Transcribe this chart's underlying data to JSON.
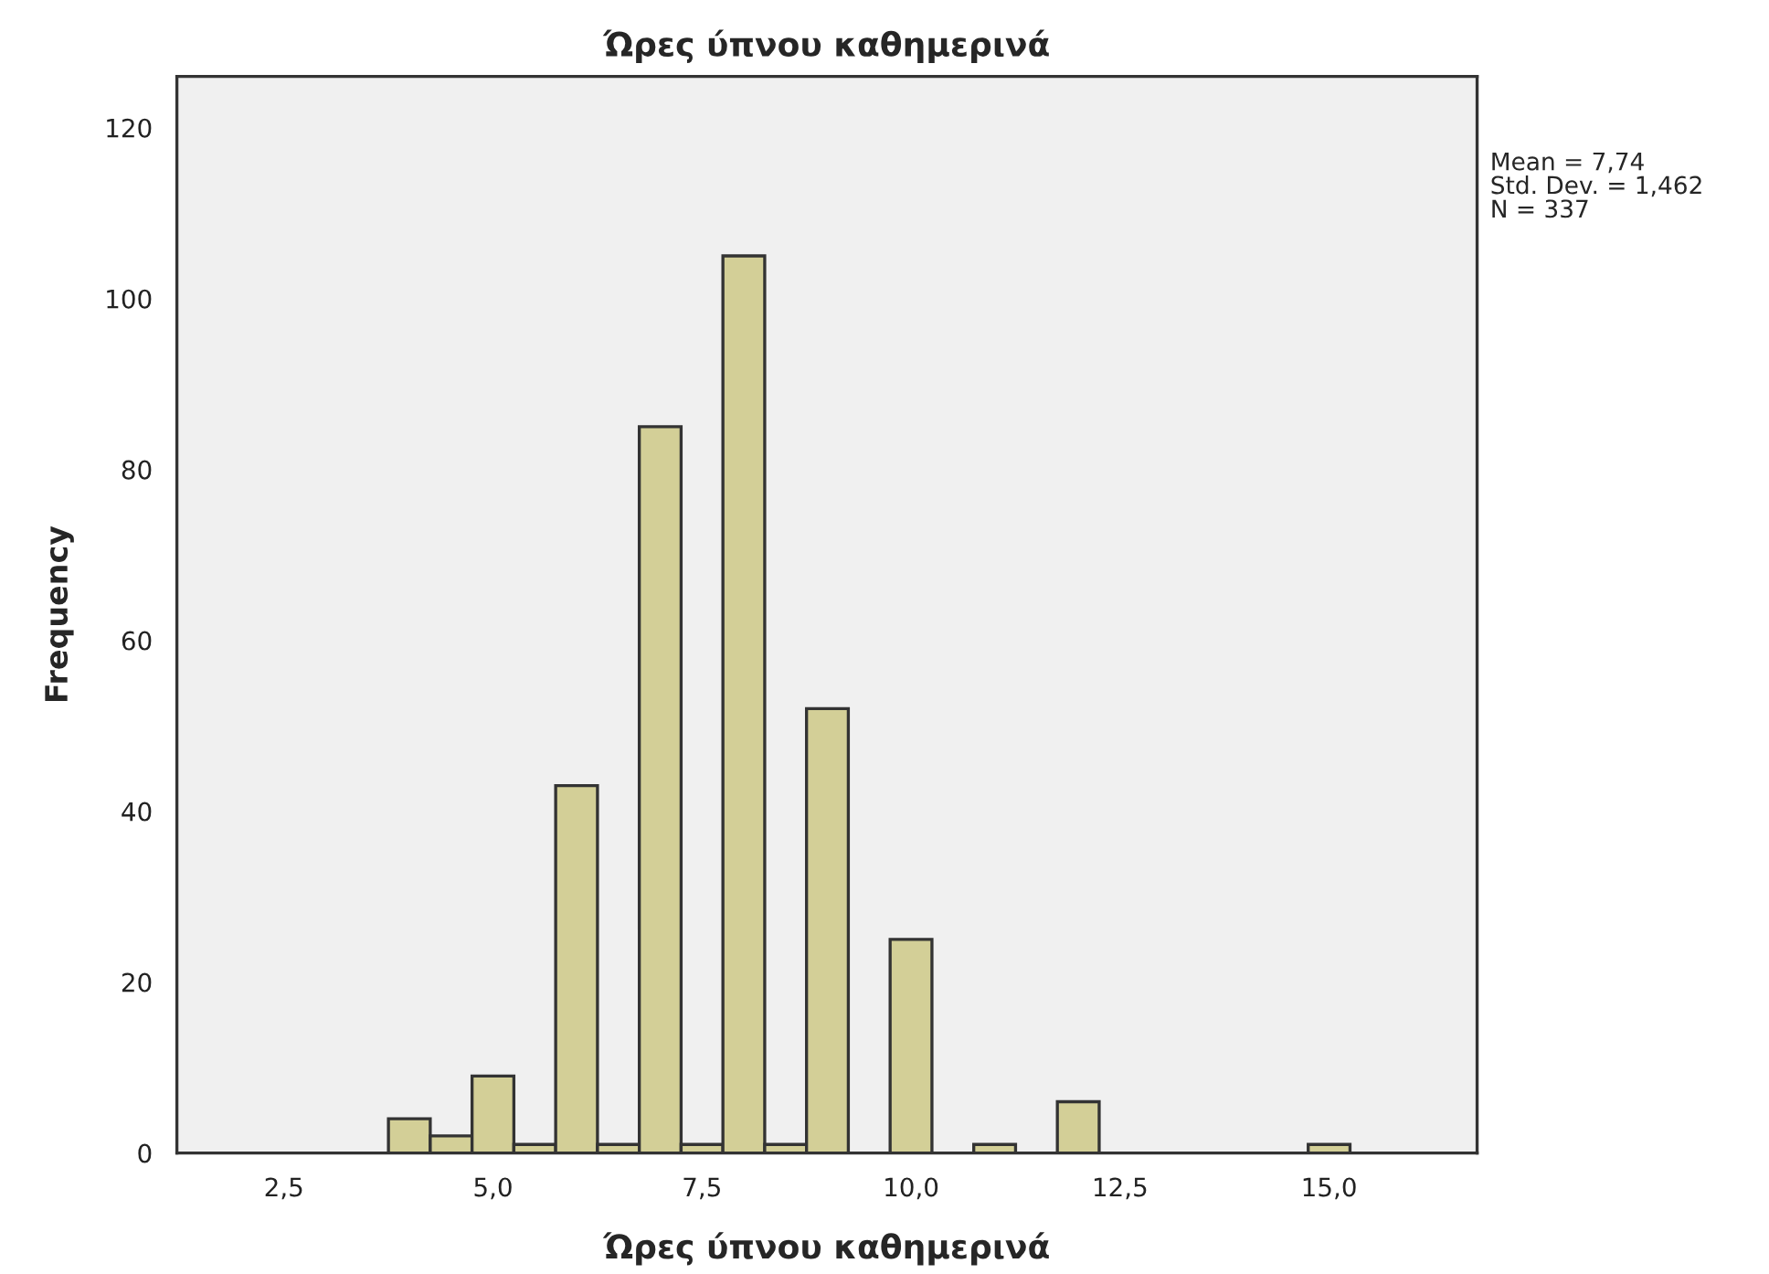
{
  "chart_data": {
    "type": "histogram",
    "title": "Ώρες ύπνου καθημερινά",
    "xlabel": "Ώρες ύπνου καθημερινά",
    "ylabel": "Frequency",
    "bins": [
      3.75,
      4.25,
      4.75,
      5.25,
      5.75,
      6.25,
      6.75,
      7.25,
      7.75,
      8.25,
      8.75,
      9.25,
      9.75,
      10.25,
      10.75,
      11.25,
      11.75,
      12.25,
      12.75,
      13.25,
      13.75,
      14.25,
      14.75,
      15.25
    ],
    "values": [
      4,
      2,
      9,
      1,
      43,
      1,
      85,
      1,
      105,
      1,
      52,
      0,
      25,
      0,
      1,
      0,
      6,
      0,
      0,
      0,
      0,
      0,
      1
    ],
    "color": "#d3cf97",
    "xlim": [
      1.22,
      16.77
    ],
    "xticks": [
      {
        "value": 2.5,
        "label": "2,5"
      },
      {
        "value": 5.0,
        "label": "5,0"
      },
      {
        "value": 7.5,
        "label": "7,5"
      },
      {
        "value": 10.0,
        "label": "10,0"
      },
      {
        "value": 12.5,
        "label": "12,5"
      },
      {
        "value": 15.0,
        "label": "15,0"
      }
    ],
    "ylim": [
      0,
      126
    ],
    "yticks": [
      0,
      20,
      40,
      60,
      80,
      100,
      120
    ],
    "grid": false,
    "annotations": [
      "Mean = 7,74",
      "Std. Dev. = 1,462",
      "N = 337"
    ]
  }
}
